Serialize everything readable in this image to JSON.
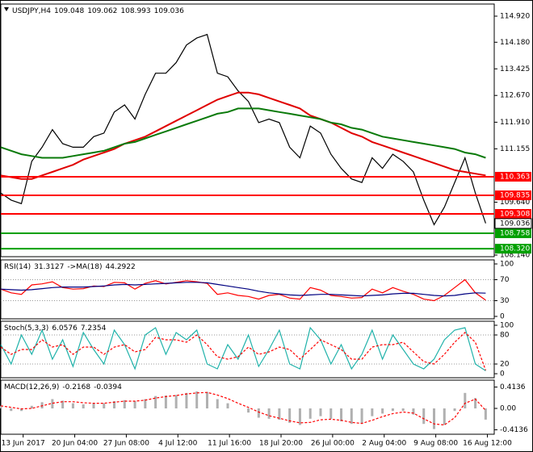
{
  "chart_data": [
    {
      "type": "line",
      "header": [
        "USDJPY,H4",
        109.048,
        109.062,
        108.993,
        109.036
      ],
      "x": [
        0,
        6,
        12,
        18,
        24,
        30,
        36,
        42,
        48,
        54,
        60,
        66,
        72,
        78,
        84,
        90,
        96,
        102,
        108,
        114,
        120,
        126,
        132,
        138,
        144,
        150,
        156,
        162,
        168,
        174,
        180,
        186,
        192,
        198,
        204,
        210,
        216,
        222,
        228,
        234,
        240,
        246,
        252,
        258,
        264,
        270,
        276,
        282
      ],
      "xlim": [
        0,
        287
      ],
      "ylim": [
        108.094,
        115.264
      ],
      "yticks": [
        {
          "value": 114.92,
          "label": "114.920"
        },
        {
          "value": 114.18,
          "label": "114.180"
        },
        113.425,
        {
          "value": 112.67,
          "label": "112.670"
        },
        {
          "value": 111.91,
          "label": "111.910"
        },
        111.155,
        {
          "value": 109.64,
          "label": "109.640"
        },
        {
          "value": 108.14,
          "label": "108.140"
        }
      ],
      "grid": false,
      "levels": [
        {
          "value": 110.363,
          "color": "#ff0000"
        },
        {
          "value": 109.835,
          "color": "#ff0000"
        },
        {
          "value": 109.308,
          "color": "#ff0000"
        },
        {
          "value": 108.758,
          "color": "#00a000"
        },
        {
          "value": 108.32,
          "label": "108.320",
          "color": "#00a000"
        }
      ],
      "last": 109.036,
      "series": [
        {
          "color": "#000000",
          "values": [
            109.9,
            109.7,
            109.6,
            110.8,
            111.2,
            111.7,
            111.3,
            111.2,
            111.2,
            111.5,
            111.6,
            112.2,
            112.4,
            112.0,
            112.7,
            113.3,
            113.3,
            113.6,
            114.1,
            114.3,
            114.4,
            113.3,
            113.2,
            112.8,
            112.5,
            111.9,
            112.0,
            111.9,
            111.2,
            110.9,
            111.8,
            111.6,
            111.0,
            110.6,
            110.3,
            110.2,
            110.9,
            110.6,
            111.0,
            110.8,
            110.5,
            109.7,
            109.0,
            109.5,
            110.2,
            110.9,
            109.9,
            109.04
          ]
        },
        {
          "color": "#e00000",
          "values": [
            110.4,
            110.35,
            110.3,
            110.3,
            110.4,
            110.5,
            110.6,
            110.7,
            110.85,
            110.95,
            111.05,
            111.15,
            111.3,
            111.4,
            111.5,
            111.65,
            111.8,
            111.95,
            112.1,
            112.25,
            112.4,
            112.55,
            112.65,
            112.75,
            112.75,
            112.7,
            112.6,
            112.5,
            112.4,
            112.3,
            112.1,
            112.0,
            111.9,
            111.75,
            111.6,
            111.5,
            111.35,
            111.25,
            111.15,
            111.05,
            110.95,
            110.85,
            110.75,
            110.65,
            110.55,
            110.5,
            110.45,
            110.4
          ]
        },
        {
          "color": "#0a7a0a",
          "values": [
            111.2,
            111.1,
            111.0,
            110.95,
            110.9,
            110.9,
            110.9,
            110.95,
            111.0,
            111.05,
            111.1,
            111.2,
            111.3,
            111.35,
            111.45,
            111.55,
            111.65,
            111.75,
            111.85,
            111.95,
            112.05,
            112.15,
            112.2,
            112.3,
            112.3,
            112.3,
            112.25,
            112.2,
            112.15,
            112.1,
            112.05,
            112.0,
            111.9,
            111.85,
            111.75,
            111.7,
            111.6,
            111.5,
            111.45,
            111.4,
            111.35,
            111.3,
            111.25,
            111.2,
            111.15,
            111.05,
            111.0,
            110.9
          ]
        }
      ]
    },
    {
      "type": "line",
      "header": [
        "RSI(14)",
        31.3127,
        "->MA(18)",
        44.2922
      ],
      "x": [
        0,
        6,
        12,
        18,
        24,
        30,
        36,
        42,
        48,
        54,
        60,
        66,
        72,
        78,
        84,
        90,
        96,
        102,
        108,
        114,
        120,
        126,
        132,
        138,
        144,
        150,
        156,
        162,
        168,
        174,
        180,
        186,
        192,
        198,
        204,
        210,
        216,
        222,
        228,
        234,
        240,
        246,
        252,
        258,
        264,
        270,
        276,
        282
      ],
      "xlim": [
        0,
        287
      ],
      "ylim": [
        -4.6,
        107.7
      ],
      "yticks": [
        100,
        70,
        30,
        0
      ],
      "grid": "inner",
      "series": [
        {
          "color": "#ff0000",
          "values": [
            52,
            45,
            42,
            60,
            62,
            66,
            55,
            52,
            53,
            58,
            57,
            65,
            64,
            52,
            63,
            68,
            62,
            65,
            68,
            66,
            63,
            42,
            45,
            40,
            38,
            33,
            40,
            42,
            35,
            33,
            55,
            50,
            40,
            38,
            35,
            36,
            52,
            45,
            55,
            48,
            42,
            33,
            30,
            40,
            55,
            70,
            45,
            31
          ]
        },
        {
          "color": "#000080",
          "values": [
            52,
            51,
            50,
            51,
            53,
            55,
            56,
            56,
            56,
            57,
            58,
            60,
            61,
            60,
            61,
            62,
            63,
            64,
            65,
            65,
            64,
            61,
            58,
            55,
            52,
            48,
            45,
            43,
            41,
            40,
            41,
            42,
            42,
            41,
            40,
            39,
            40,
            41,
            43,
            44,
            44,
            42,
            40,
            39,
            40,
            43,
            45,
            44.29
          ]
        }
      ]
    },
    {
      "type": "line",
      "header": [
        "Stoch(5,3,3)",
        6.0576,
        7.2354
      ],
      "x": [
        0,
        6,
        12,
        18,
        24,
        30,
        36,
        42,
        48,
        54,
        60,
        66,
        72,
        78,
        84,
        90,
        96,
        102,
        108,
        114,
        120,
        126,
        132,
        138,
        144,
        150,
        156,
        162,
        168,
        174,
        180,
        186,
        192,
        198,
        204,
        210,
        216,
        222,
        228,
        234,
        240,
        246,
        252,
        258,
        264,
        270,
        276,
        282
      ],
      "xlim": [
        0,
        287
      ],
      "ylim": [
        -8.3,
        108.3
      ],
      "yticks": [
        100,
        80,
        20,
        0
      ],
      "grid": "inner",
      "series": [
        {
          "color": "#20b2aa",
          "values": [
            60,
            20,
            80,
            40,
            90,
            30,
            70,
            15,
            85,
            50,
            20,
            90,
            60,
            10,
            80,
            95,
            40,
            85,
            70,
            90,
            20,
            10,
            60,
            30,
            80,
            15,
            50,
            90,
            20,
            10,
            95,
            70,
            20,
            60,
            10,
            40,
            90,
            30,
            80,
            50,
            20,
            10,
            30,
            70,
            90,
            95,
            20,
            6.06
          ]
        },
        {
          "color": "#ff0000",
          "dash": true,
          "values": [
            55,
            40,
            50,
            50,
            70,
            55,
            60,
            40,
            55,
            55,
            40,
            55,
            60,
            45,
            50,
            75,
            70,
            70,
            65,
            80,
            60,
            35,
            30,
            35,
            55,
            40,
            45,
            55,
            50,
            30,
            50,
            70,
            60,
            50,
            30,
            30,
            55,
            60,
            60,
            65,
            45,
            25,
            20,
            40,
            65,
            85,
            65,
            7.24
          ]
        }
      ]
    },
    {
      "type": "line",
      "header": [
        "MACD(12,26,9)",
        -0.2168,
        -0.0394
      ],
      "x": [
        0,
        6,
        12,
        18,
        24,
        30,
        36,
        42,
        48,
        54,
        60,
        66,
        72,
        78,
        84,
        90,
        96,
        102,
        108,
        114,
        120,
        126,
        132,
        138,
        144,
        150,
        156,
        162,
        168,
        174,
        180,
        186,
        192,
        198,
        204,
        210,
        216,
        222,
        228,
        234,
        240,
        246,
        252,
        258,
        264,
        270,
        276,
        282
      ],
      "xlim": [
        0,
        287
      ],
      "ylim": [
        -0.5,
        0.547
      ],
      "yticks": [
        0.4136,
        {
          "value": 0,
          "label": "0.00"
        },
        -0.4136
      ],
      "grid": false,
      "xticks": [
        {
          "value": 13,
          "label": "13 Jun 2017"
        },
        {
          "value": 43,
          "label": "20 Jun 04:00"
        },
        {
          "value": 73,
          "label": "27 Jun 08:00"
        },
        {
          "value": 103,
          "label": "4 Jul 12:00"
        },
        {
          "value": 133,
          "label": "11 Jul 16:00"
        },
        {
          "value": 163,
          "label": "18 Jul 20:00"
        },
        {
          "value": 193,
          "label": "26 Jul 00:00"
        },
        {
          "value": 223,
          "label": "2 Aug 04:00"
        },
        {
          "value": 253,
          "label": "9 Aug 08:00"
        },
        {
          "value": 283,
          "label": "16 Aug 12:00"
        }
      ],
      "series": [
        {
          "color": "#b0b0b0",
          "kind": "histogram",
          "values": [
            0.05,
            -0.05,
            -0.05,
            0.05,
            0.12,
            0.18,
            0.15,
            0.1,
            0.08,
            0.1,
            0.1,
            0.14,
            0.16,
            0.14,
            0.18,
            0.24,
            0.25,
            0.26,
            0.3,
            0.33,
            0.32,
            0.18,
            0.1,
            0.0,
            -0.08,
            -0.18,
            -0.2,
            -0.22,
            -0.28,
            -0.32,
            -0.2,
            -0.15,
            -0.2,
            -0.25,
            -0.3,
            -0.3,
            -0.15,
            -0.1,
            -0.05,
            -0.05,
            -0.12,
            -0.3,
            -0.4,
            -0.32,
            -0.05,
            0.3,
            0.2,
            -0.2168
          ]
        },
        {
          "color": "#ff0000",
          "dash": true,
          "values": [
            0.05,
            0.02,
            -0.01,
            0.0,
            0.05,
            0.1,
            0.13,
            0.13,
            0.11,
            0.1,
            0.1,
            0.12,
            0.14,
            0.14,
            0.16,
            0.2,
            0.23,
            0.25,
            0.28,
            0.3,
            0.31,
            0.26,
            0.19,
            0.1,
            0.02,
            -0.07,
            -0.14,
            -0.19,
            -0.24,
            -0.28,
            -0.27,
            -0.22,
            -0.21,
            -0.23,
            -0.27,
            -0.29,
            -0.23,
            -0.16,
            -0.1,
            -0.07,
            -0.09,
            -0.2,
            -0.3,
            -0.32,
            -0.18,
            0.1,
            0.18,
            -0.0394
          ]
        }
      ]
    }
  ]
}
